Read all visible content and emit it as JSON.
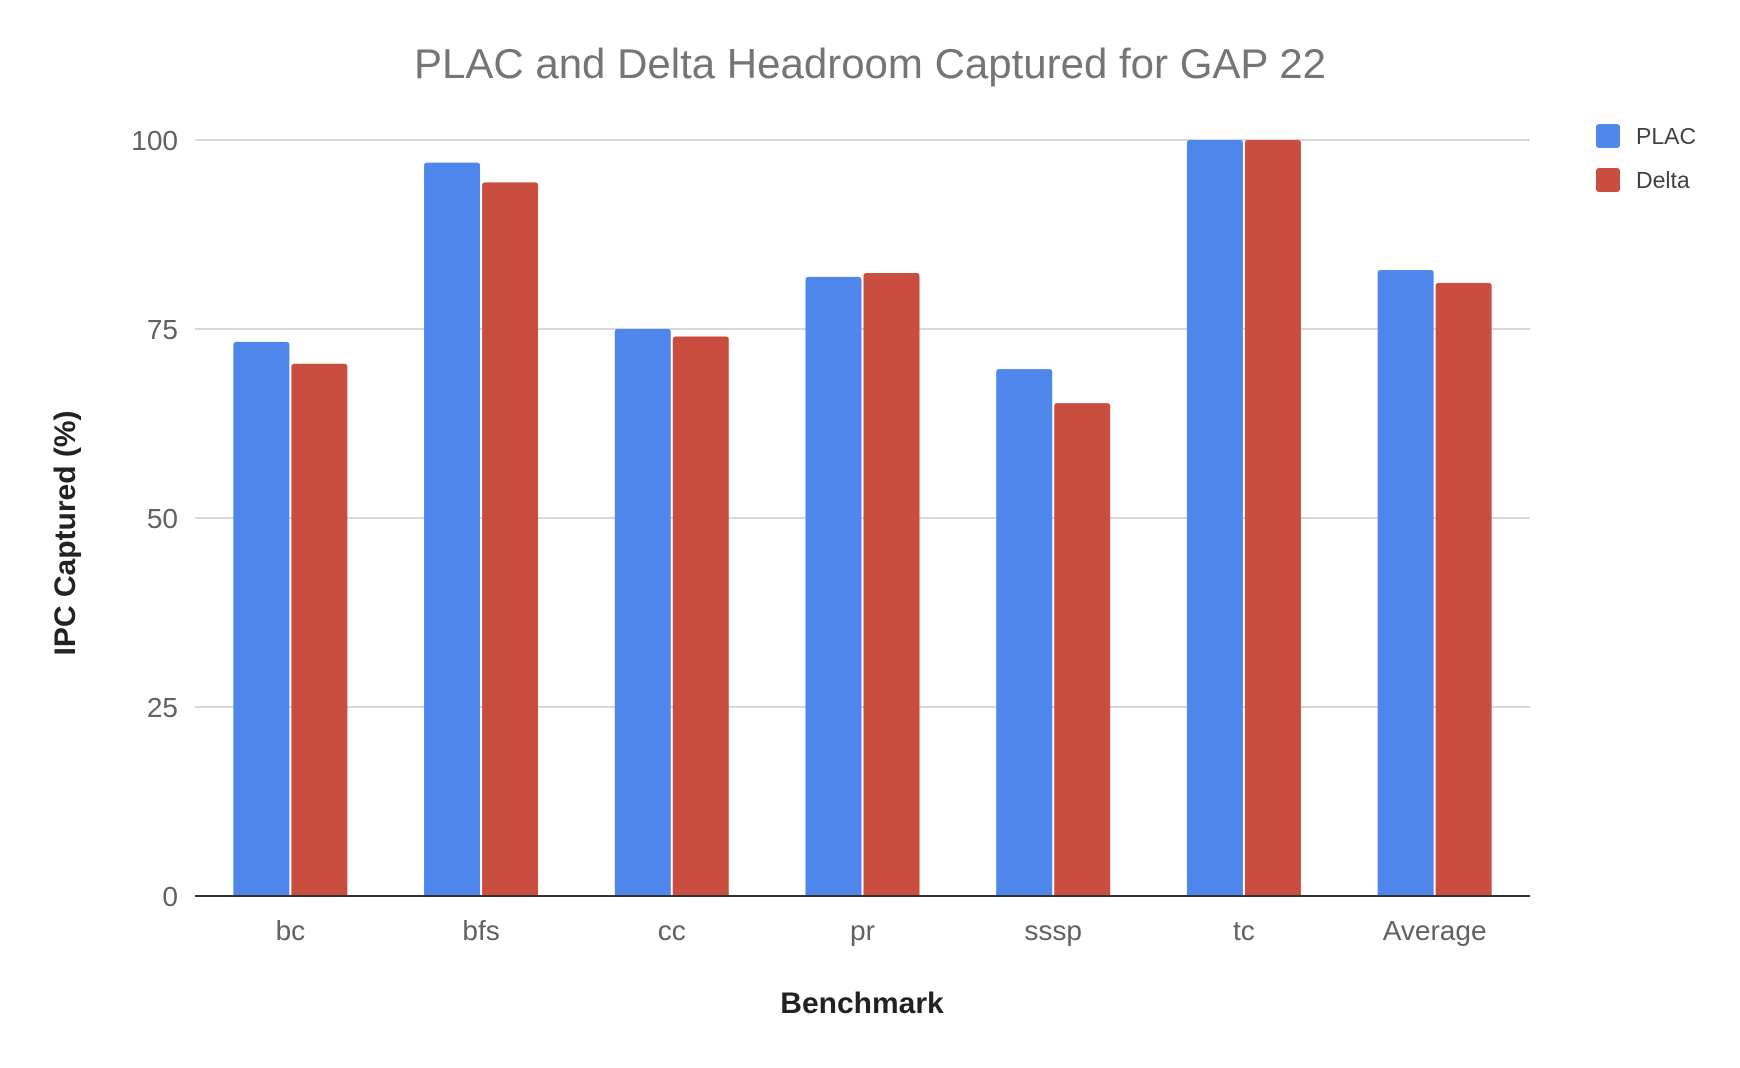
{
  "chart_data": {
    "type": "bar",
    "title": "PLAC and Delta Headroom Captured for GAP 22",
    "xlabel": "Benchmark",
    "ylabel": "IPC Captured (%)",
    "ylim": [
      0,
      100
    ],
    "yticks": [
      0,
      25,
      50,
      75,
      100
    ],
    "grid": true,
    "legend_position": "right",
    "categories": [
      "bc",
      "bfs",
      "cc",
      "pr",
      "sssp",
      "tc",
      "Average"
    ],
    "series": [
      {
        "name": "PLAC",
        "color": "#4e86ec",
        "values": [
          73.3,
          97,
          75,
          81.9,
          69.7,
          100,
          82.8
        ]
      },
      {
        "name": "Delta",
        "color": "#ca4e3f",
        "values": [
          70.4,
          94.4,
          74,
          82.4,
          65.2,
          100,
          81.1
        ]
      }
    ]
  }
}
